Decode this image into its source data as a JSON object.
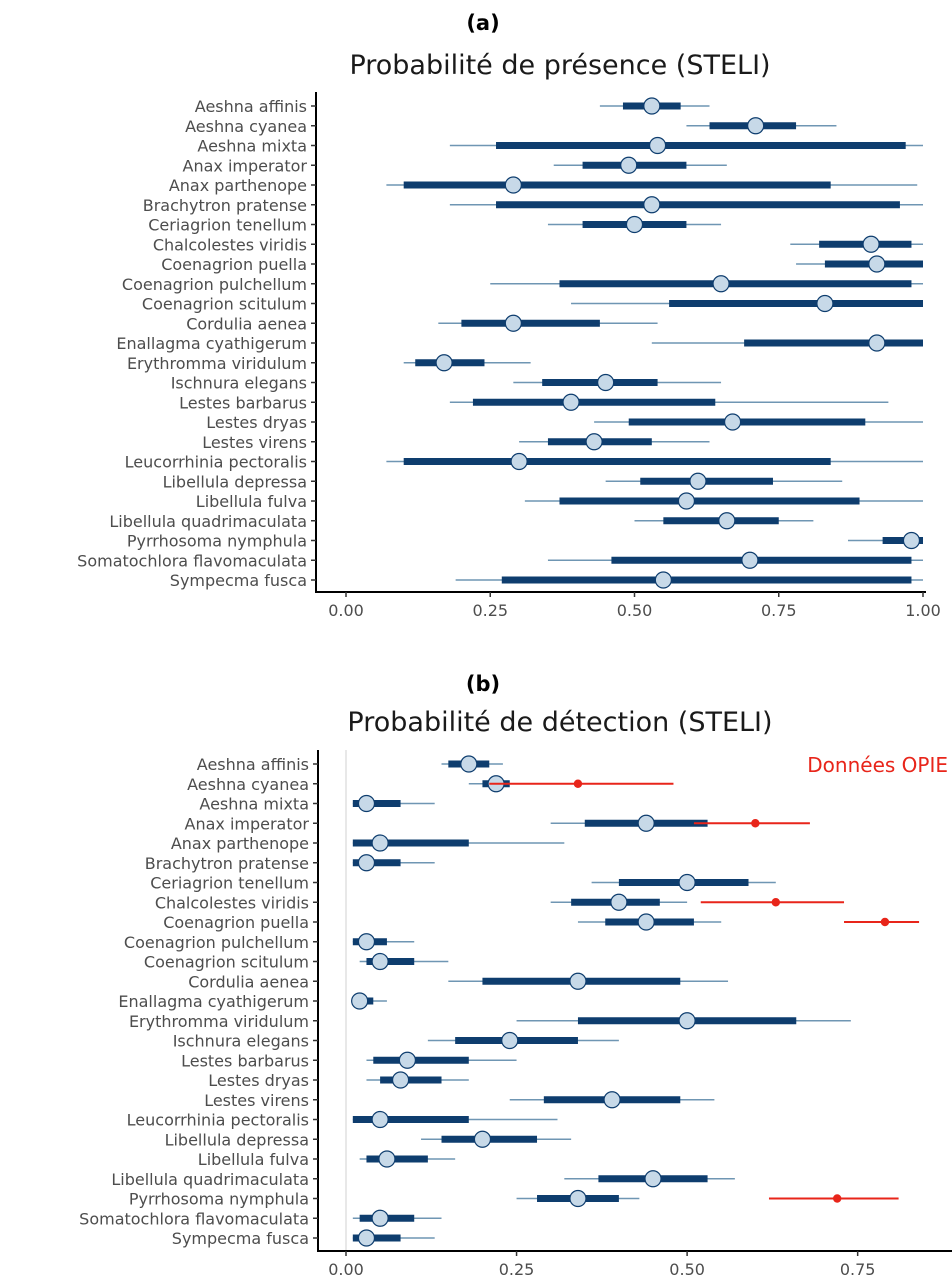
{
  "figure": {
    "panel_a_label": "(a)",
    "panel_b_label": "(b)"
  },
  "colors": {
    "thick": "#0e3d6e",
    "thin": "#6f96b3",
    "point_fill": "#c7d9e8",
    "point_stroke": "#0e3d6e",
    "opie": "#e8251a"
  },
  "chart_data": [
    {
      "type": "interval",
      "title": "Probabilité de présence (STELI)",
      "xlabel": "",
      "ylabel": "",
      "xlim": [
        0,
        1
      ],
      "x_ticks": [
        "0.00",
        "0.25",
        "0.50",
        "0.75",
        "1.00"
      ],
      "categories": [
        "Aeshna affinis",
        "Aeshna cyanea",
        "Aeshna mixta",
        "Anax imperator",
        "Anax parthenope",
        "Brachytron pratense",
        "Ceriagrion tenellum",
        "Chalcolestes viridis",
        "Coenagrion puella",
        "Coenagrion pulchellum",
        "Coenagrion scitulum",
        "Cordulia aenea",
        "Enallagma cyathigerum",
        "Erythromma viridulum",
        "Ischnura elegans",
        "Lestes barbarus",
        "Lestes dryas",
        "Lestes virens",
        "Leucorrhinia pectoralis",
        "Libellula depressa",
        "Libellula fulva",
        "Libellula quadrimaculata",
        "Pyrrhosoma nymphula",
        "Somatochlora flavomaculata",
        "Sympecma fusca"
      ],
      "series": [
        {
          "median": [
            0.53,
            0.71,
            0.54,
            0.49,
            0.29,
            0.53,
            0.5,
            0.91,
            0.92,
            0.65,
            0.83,
            0.29,
            0.92,
            0.17,
            0.45,
            0.39,
            0.67,
            0.43,
            0.3,
            0.61,
            0.59,
            0.66,
            0.98,
            0.7,
            0.55
          ],
          "inner_low": [
            0.48,
            0.63,
            0.26,
            0.41,
            0.1,
            0.26,
            0.41,
            0.82,
            0.83,
            0.37,
            0.56,
            0.2,
            0.69,
            0.12,
            0.34,
            0.22,
            0.49,
            0.35,
            0.1,
            0.51,
            0.37,
            0.55,
            0.93,
            0.46,
            0.27
          ],
          "inner_high": [
            0.58,
            0.78,
            0.97,
            0.59,
            0.84,
            0.96,
            0.59,
            0.98,
            1.0,
            0.98,
            1.0,
            0.44,
            1.0,
            0.24,
            0.54,
            0.64,
            0.9,
            0.53,
            0.84,
            0.74,
            0.89,
            0.75,
            1.0,
            0.98,
            0.98
          ],
          "outer_low": [
            0.44,
            0.59,
            0.18,
            0.36,
            0.07,
            0.18,
            0.35,
            0.77,
            0.78,
            0.25,
            0.39,
            0.16,
            0.53,
            0.1,
            0.29,
            0.18,
            0.43,
            0.3,
            0.07,
            0.45,
            0.31,
            0.5,
            0.87,
            0.35,
            0.19
          ],
          "outer_high": [
            0.63,
            0.85,
            1.0,
            0.66,
            0.99,
            1.0,
            0.65,
            1.0,
            1.0,
            1.0,
            1.0,
            0.54,
            1.0,
            0.32,
            0.65,
            0.94,
            1.0,
            0.63,
            1.0,
            0.86,
            1.0,
            0.81,
            1.0,
            1.0,
            1.0
          ]
        }
      ]
    },
    {
      "type": "interval",
      "title": "Probabilité de détection (STELI)",
      "xlabel": "",
      "ylabel": "",
      "xlim": [
        0,
        0.9
      ],
      "x_ticks": [
        "0.00",
        "0.25",
        "0.50",
        "0.75"
      ],
      "categories": [
        "Aeshna affinis",
        "Aeshna cyanea",
        "Aeshna mixta",
        "Anax imperator",
        "Anax parthenope",
        "Brachytron pratense",
        "Ceriagrion tenellum",
        "Chalcolestes viridis",
        "Coenagrion puella",
        "Coenagrion pulchellum",
        "Coenagrion scitulum",
        "Cordulia aenea",
        "Enallagma cyathigerum",
        "Erythromma viridulum",
        "Ischnura elegans",
        "Lestes barbarus",
        "Lestes dryas",
        "Lestes virens",
        "Leucorrhinia pectoralis",
        "Libellula depressa",
        "Libellula fulva",
        "Libellula quadrimaculata",
        "Pyrrhosoma nymphula",
        "Somatochlora flavomaculata",
        "Sympecma fusca"
      ],
      "series": [
        {
          "median": [
            0.18,
            0.22,
            0.03,
            0.44,
            0.05,
            0.03,
            0.5,
            0.4,
            0.44,
            0.03,
            0.05,
            0.34,
            0.02,
            0.5,
            0.24,
            0.09,
            0.08,
            0.39,
            0.05,
            0.2,
            0.06,
            0.45,
            0.34,
            0.05,
            0.03
          ],
          "inner_low": [
            0.15,
            0.2,
            0.01,
            0.35,
            0.01,
            0.01,
            0.4,
            0.33,
            0.38,
            0.01,
            0.03,
            0.2,
            0.01,
            0.34,
            0.16,
            0.04,
            0.05,
            0.29,
            0.01,
            0.14,
            0.03,
            0.37,
            0.28,
            0.02,
            0.01
          ],
          "inner_high": [
            0.21,
            0.24,
            0.08,
            0.53,
            0.18,
            0.08,
            0.59,
            0.46,
            0.51,
            0.06,
            0.1,
            0.49,
            0.04,
            0.66,
            0.34,
            0.18,
            0.14,
            0.49,
            0.18,
            0.28,
            0.12,
            0.53,
            0.4,
            0.1,
            0.08
          ],
          "outer_low": [
            0.14,
            0.18,
            0.01,
            0.3,
            0.01,
            0.01,
            0.36,
            0.3,
            0.34,
            0.01,
            0.02,
            0.15,
            0.01,
            0.25,
            0.12,
            0.03,
            0.03,
            0.24,
            0.01,
            0.11,
            0.02,
            0.32,
            0.25,
            0.01,
            0.01
          ],
          "outer_high": [
            0.23,
            0.25,
            0.13,
            0.58,
            0.32,
            0.13,
            0.63,
            0.5,
            0.55,
            0.1,
            0.15,
            0.56,
            0.06,
            0.74,
            0.4,
            0.25,
            0.18,
            0.54,
            0.31,
            0.33,
            0.16,
            0.57,
            0.43,
            0.14,
            0.13
          ]
        },
        {
          "name": "Données OPIE",
          "points": [
            {
              "category": "Aeshna cyanea",
              "value": 0.34,
              "low": 0.21,
              "high": 0.48
            },
            {
              "category": "Anax imperator",
              "value": 0.6,
              "low": 0.51,
              "high": 0.68
            },
            {
              "category": "Chalcolestes viridis",
              "value": 0.63,
              "low": 0.52,
              "high": 0.73
            },
            {
              "category": "Coenagrion puella",
              "value": 0.79,
              "low": 0.73,
              "high": 0.84
            },
            {
              "category": "Pyrrhosoma nymphula",
              "value": 0.72,
              "low": 0.62,
              "high": 0.81
            }
          ]
        }
      ]
    }
  ]
}
